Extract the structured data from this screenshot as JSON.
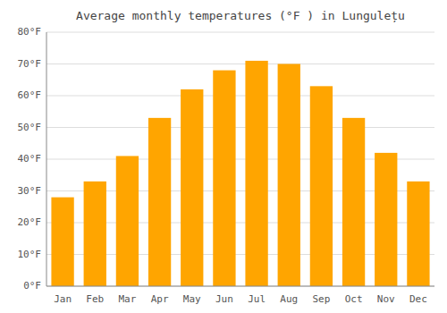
{
  "chart_data": {
    "type": "bar",
    "title": "Average monthly temperatures (°F ) in Lungulețu",
    "categories": [
      "Jan",
      "Feb",
      "Mar",
      "Apr",
      "May",
      "Jun",
      "Jul",
      "Aug",
      "Sep",
      "Oct",
      "Nov",
      "Dec"
    ],
    "values": [
      28,
      33,
      41,
      53,
      62,
      68,
      71,
      70,
      63,
      53,
      42,
      33
    ],
    "color": "#FFA500",
    "ylim": [
      0,
      80
    ],
    "yticks": [
      {
        "value": 0,
        "label": "0°F"
      },
      {
        "value": 10,
        "label": "10°F"
      },
      {
        "value": 20,
        "label": "20°F"
      },
      {
        "value": 30,
        "label": "30°F"
      },
      {
        "value": 40,
        "label": "40°F"
      },
      {
        "value": 50,
        "label": "50°F"
      },
      {
        "value": 60,
        "label": "60°F"
      },
      {
        "value": 70,
        "label": "70°F"
      },
      {
        "value": 80,
        "label": "80°F"
      }
    ],
    "grid": true
  }
}
